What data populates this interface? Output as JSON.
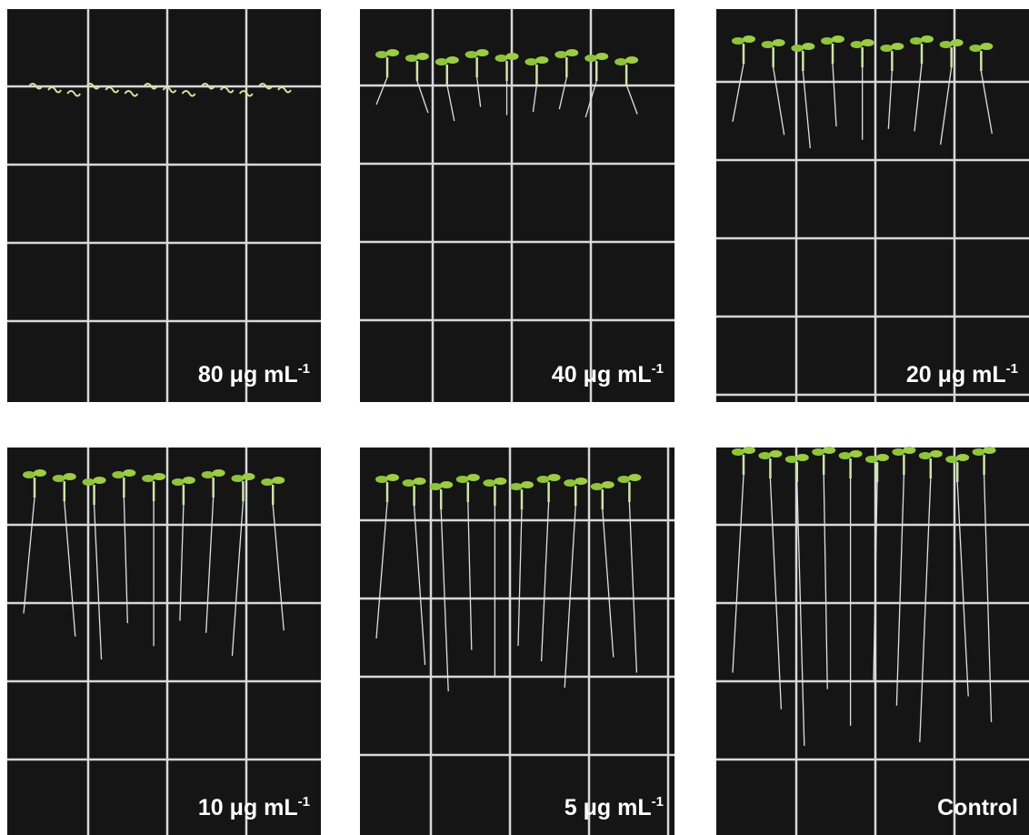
{
  "panels": [
    {
      "label": "80 μg mL",
      "superscript": "-1"
    },
    {
      "label": "40 μg mL",
      "superscript": "-1"
    },
    {
      "label": "20 μg mL",
      "superscript": "-1"
    },
    {
      "label": "10 μg mL",
      "superscript": "-1"
    },
    {
      "label": "5 μg mL",
      "superscript": "-1"
    },
    {
      "label": "Control"
    }
  ]
}
